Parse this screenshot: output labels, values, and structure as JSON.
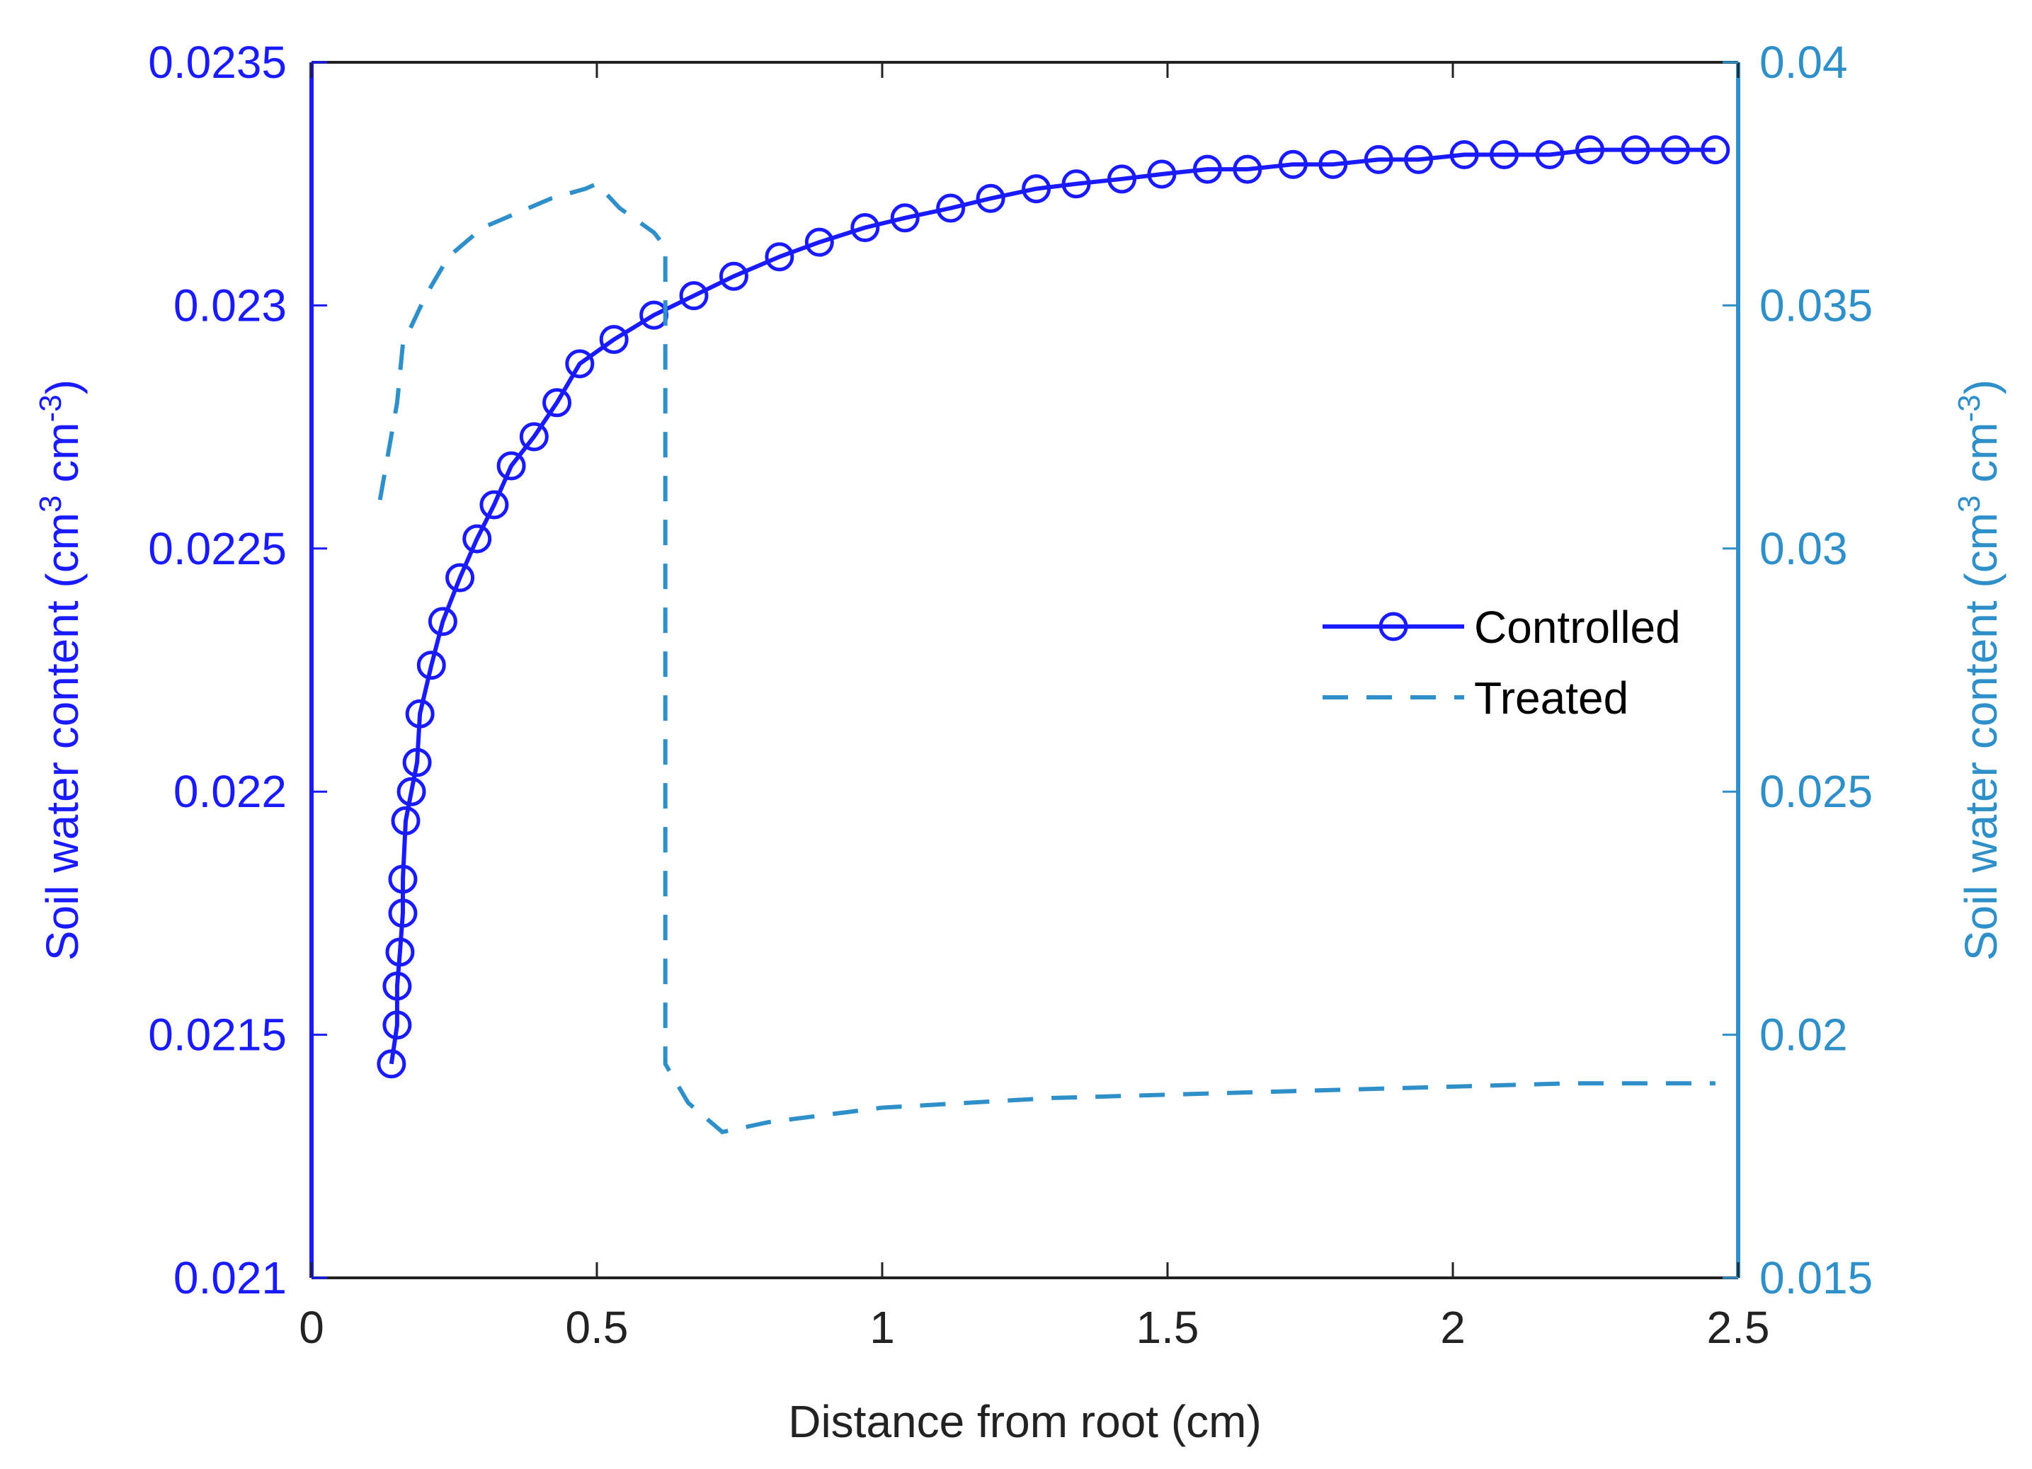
{
  "colors": {
    "left_axis": "#1a1aff",
    "right_axis": "#2f8fc8",
    "controlled": "#1a1aff",
    "treated": "#2f8fc8",
    "text_dark": "#222222"
  },
  "chart_data": {
    "type": "line",
    "title": "",
    "xlabel": "Distance from root (cm)",
    "ylabel_left": {
      "main": "Soil water content (cm",
      "sup1": "3",
      "mid": " cm",
      "sup2": "-3",
      "end": ")"
    },
    "ylabel_right": {
      "main": "Soil water content (cm",
      "sup1": "3",
      "mid": " cm",
      "sup2": "-3",
      "end": ")"
    },
    "xlim": [
      0,
      2.5
    ],
    "ylim_left": [
      0.021,
      0.0235
    ],
    "ylim_right": [
      0.015,
      0.04
    ],
    "x_ticks": [
      "0",
      "0.5",
      "1",
      "1.5",
      "2",
      "2.5"
    ],
    "y_ticks_left": [
      "0.021",
      "0.0215",
      "0.022",
      "0.0225",
      "0.023",
      "0.0235"
    ],
    "y_ticks_right": [
      "0.015",
      "0.02",
      "0.025",
      "0.03",
      "0.035",
      "0.04"
    ],
    "legend": {
      "position": "center-right",
      "entries": [
        "Controlled",
        "Treated"
      ]
    },
    "series": [
      {
        "name": "Controlled",
        "axis": "left",
        "style": "solid-circle-markers",
        "x": [
          0.14,
          0.15,
          0.15,
          0.155,
          0.16,
          0.16,
          0.165,
          0.175,
          0.185,
          0.19,
          0.21,
          0.23,
          0.26,
          0.29,
          0.32,
          0.35,
          0.39,
          0.43,
          0.47,
          0.53,
          0.6,
          0.67,
          0.74,
          0.82,
          0.89,
          0.97,
          1.04,
          1.12,
          1.19,
          1.27,
          1.34,
          1.42,
          1.49,
          1.57,
          1.64,
          1.72,
          1.79,
          1.87,
          1.94,
          2.02,
          2.09,
          2.17,
          2.24,
          2.32,
          2.39,
          2.46
        ],
        "y": [
          0.02144,
          0.02152,
          0.0216,
          0.02167,
          0.02175,
          0.02182,
          0.02194,
          0.022,
          0.02206,
          0.02216,
          0.02226,
          0.02235,
          0.02244,
          0.02252,
          0.02259,
          0.02267,
          0.02273,
          0.0228,
          0.02288,
          0.02293,
          0.02298,
          0.02302,
          0.02306,
          0.0231,
          0.02313,
          0.02316,
          0.02318,
          0.0232,
          0.02322,
          0.02324,
          0.02325,
          0.02326,
          0.02327,
          0.02328,
          0.02328,
          0.02329,
          0.02329,
          0.0233,
          0.0233,
          0.02331,
          0.02331,
          0.02331,
          0.02332,
          0.02332,
          0.02332,
          0.02332
        ]
      },
      {
        "name": "Treated",
        "axis": "right",
        "style": "dashed",
        "x": [
          0.12,
          0.15,
          0.16,
          0.2,
          0.24,
          0.3,
          0.36,
          0.42,
          0.48,
          0.5,
          0.54,
          0.6,
          0.62,
          0.62,
          0.66,
          0.72,
          0.8,
          1.0,
          1.3,
          1.6,
          1.9,
          2.2,
          2.46
        ],
        "y": [
          0.031,
          0.033,
          0.0342,
          0.0352,
          0.036,
          0.0366,
          0.0369,
          0.0372,
          0.0374,
          0.0375,
          0.037,
          0.0365,
          0.0362,
          0.0194,
          0.0186,
          0.018,
          0.0182,
          0.0185,
          0.0187,
          0.0188,
          0.0189,
          0.019,
          0.019
        ]
      }
    ]
  }
}
